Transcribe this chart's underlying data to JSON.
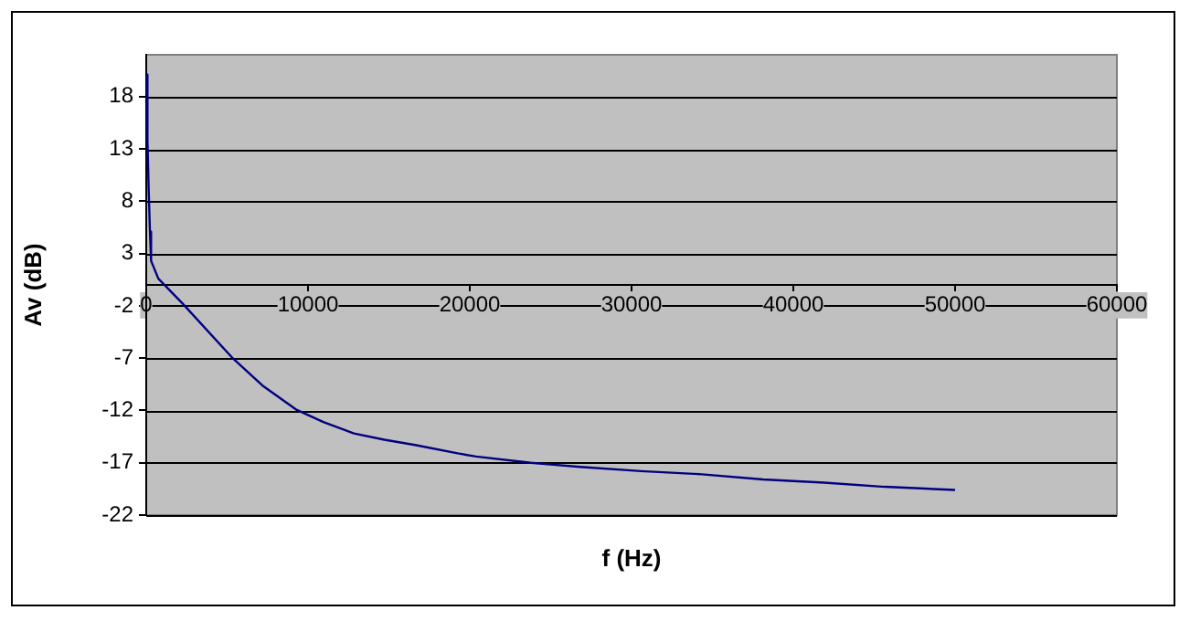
{
  "chart_data": {
    "type": "line",
    "xlabel": "f (Hz)",
    "ylabel": "Av (dB)",
    "xlim": [
      0,
      60000
    ],
    "xticks": [
      0,
      10000,
      20000,
      30000,
      40000,
      50000,
      60000
    ],
    "ylim": [
      -22,
      22
    ],
    "yticks": [
      -22,
      -17,
      -12,
      -7,
      -2,
      3,
      8,
      13,
      18
    ],
    "grid": "y",
    "legend": false,
    "marker": "none",
    "line_style": "solid",
    "series": [
      {
        "color": "#000080",
        "x": [
          10,
          75,
          150,
          230,
          300,
          750,
          2260,
          5280,
          7170,
          9250,
          10950,
          12840,
          14720,
          16610,
          19250,
          20380,
          23780,
          26800,
          30580,
          34350,
          38130,
          41900,
          45660,
          50000
        ],
        "values": [
          20.1,
          13.8,
          9.2,
          5.1,
          2.3,
          0.6,
          -1.8,
          -6.9,
          -9.6,
          -11.9,
          -13.1,
          -14.2,
          -14.8,
          -15.3,
          -16.1,
          -16.4,
          -17.0,
          -17.4,
          -17.8,
          -18.1,
          -18.6,
          -18.9,
          -19.3,
          -19.6
        ]
      }
    ]
  }
}
